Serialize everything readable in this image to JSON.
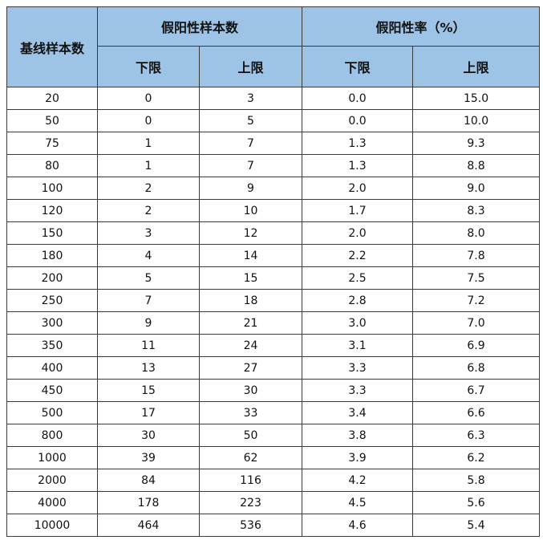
{
  "table": {
    "header": {
      "baseline": "基线样本数",
      "fp_count": "假阳性样本数",
      "fp_rate": "假阳性率（%）",
      "sub": [
        "下限",
        "上限",
        "下限",
        "上限"
      ]
    },
    "rows": [
      [
        "20",
        "0",
        "3",
        "0.0",
        "15.0"
      ],
      [
        "50",
        "0",
        "5",
        "0.0",
        "10.0"
      ],
      [
        "75",
        "1",
        "7",
        "1.3",
        "9.3"
      ],
      [
        "80",
        "1",
        "7",
        "1.3",
        "8.8"
      ],
      [
        "100",
        "2",
        "9",
        "2.0",
        "9.0"
      ],
      [
        "120",
        "2",
        "10",
        "1.7",
        "8.3"
      ],
      [
        "150",
        "3",
        "12",
        "2.0",
        "8.0"
      ],
      [
        "180",
        "4",
        "14",
        "2.2",
        "7.8"
      ],
      [
        "200",
        "5",
        "15",
        "2.5",
        "7.5"
      ],
      [
        "250",
        "7",
        "18",
        "2.8",
        "7.2"
      ],
      [
        "300",
        "9",
        "21",
        "3.0",
        "7.0"
      ],
      [
        "350",
        "11",
        "24",
        "3.1",
        "6.9"
      ],
      [
        "400",
        "13",
        "27",
        "3.3",
        "6.8"
      ],
      [
        "450",
        "15",
        "30",
        "3.3",
        "6.7"
      ],
      [
        "500",
        "17",
        "33",
        "3.4",
        "6.6"
      ],
      [
        "800",
        "30",
        "50",
        "3.8",
        "6.3"
      ],
      [
        "1000",
        "39",
        "62",
        "3.9",
        "6.2"
      ],
      [
        "2000",
        "84",
        "116",
        "4.2",
        "5.8"
      ],
      [
        "4000",
        "178",
        "223",
        "4.5",
        "5.6"
      ],
      [
        "10000",
        "464",
        "536",
        "4.6",
        "5.4"
      ]
    ]
  }
}
